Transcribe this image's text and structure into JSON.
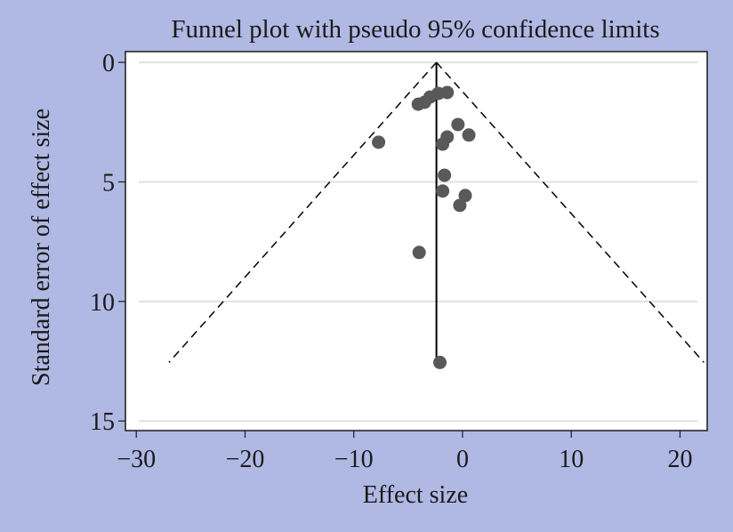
{
  "chart_data": {
    "type": "scatter",
    "title": "Funnel plot with pseudo 95% confidence limits",
    "xlabel": "Effect size",
    "ylabel": "Standard error of effect size",
    "xlim": [
      -31,
      22.5
    ],
    "ylim": [
      15.4,
      -0.45
    ],
    "y_reversed": true,
    "x_ticks": [
      -30,
      -20,
      -10,
      0,
      10,
      20
    ],
    "x_tick_labels": [
      "−30",
      "−20",
      "−10",
      "0",
      "10",
      "20"
    ],
    "y_ticks": [
      0,
      5,
      10,
      15
    ],
    "y_tick_labels": [
      "0",
      "5",
      "10",
      "15"
    ],
    "grid": "horizontal",
    "legend": "none",
    "pooled_effect": -2.4,
    "funnel": {
      "confidence": 0.95,
      "z": 1.96,
      "max_se": 12.55,
      "line_style": "dashed"
    },
    "points": [
      {
        "x": -4.07,
        "y": 1.75
      },
      {
        "x": -3.49,
        "y": 1.67
      },
      {
        "x": -2.99,
        "y": 1.45
      },
      {
        "x": -2.24,
        "y": 1.3
      },
      {
        "x": -1.41,
        "y": 1.26
      },
      {
        "x": -7.72,
        "y": 3.34
      },
      {
        "x": -0.42,
        "y": 2.6
      },
      {
        "x": 0.58,
        "y": 3.04
      },
      {
        "x": -1.41,
        "y": 3.12
      },
      {
        "x": -1.83,
        "y": 3.42
      },
      {
        "x": -1.66,
        "y": 4.72
      },
      {
        "x": -1.83,
        "y": 5.38
      },
      {
        "x": 0.25,
        "y": 5.57
      },
      {
        "x": -0.25,
        "y": 5.98
      },
      {
        "x": -3.99,
        "y": 7.95
      },
      {
        "x": -2.08,
        "y": 12.55
      }
    ],
    "colors": {
      "background": "#b0b9e3",
      "plot_background": "#ffffff",
      "point": "#595959",
      "gridline": "#e0e0e0",
      "axis": "#1a1a1a",
      "funnel_line": "#000000"
    }
  }
}
